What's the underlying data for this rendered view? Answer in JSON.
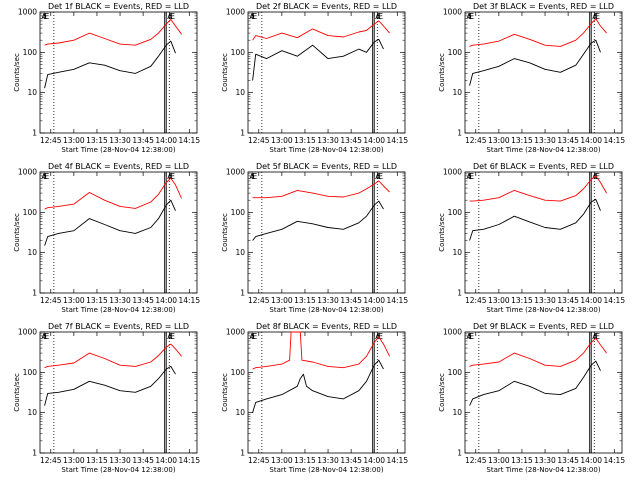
{
  "figure": {
    "ylabel": "Counts/sec",
    "xlabel": "Start Time (28-Nov-04 12:38:00)",
    "x_ticks": [
      "12:45",
      "13:00",
      "13:15",
      "13:30",
      "13:45",
      "14:00",
      "14:15"
    ],
    "y_ticks": [
      "1",
      "10",
      "100",
      "1000"
    ],
    "flags": [
      "A",
      "E",
      "E"
    ],
    "colors": {
      "events": "#000000",
      "lld": "#ff0000"
    }
  },
  "chart_data": [
    {
      "type": "line",
      "title": "Det 1f BLACK = Events, RED = LLD",
      "xlim": [
        "12:38",
        "14:20"
      ],
      "ylim": [
        1,
        1000
      ],
      "ylog": true,
      "dotted_x": [
        "12:47",
        "14:02"
      ],
      "solid_x": [
        "13:59",
        "14:00"
      ],
      "series": [
        {
          "name": "Events",
          "color": "#000000",
          "x": [
            "12:41",
            "12:43",
            "12:50",
            "13:00",
            "13:10",
            "13:20",
            "13:30",
            "13:40",
            "13:50",
            "13:55",
            "14:00",
            "14:03",
            "14:06"
          ],
          "y": [
            13,
            28,
            32,
            38,
            55,
            48,
            35,
            30,
            45,
            80,
            150,
            190,
            95
          ]
        },
        {
          "name": "LLD",
          "color": "#ff0000",
          "x": [
            "12:41",
            "12:43",
            "12:50",
            "13:00",
            "13:10",
            "13:20",
            "13:30",
            "13:40",
            "13:50",
            "13:55",
            "14:00",
            "14:03",
            "14:06",
            "14:10"
          ],
          "y": [
            150,
            160,
            170,
            200,
            300,
            220,
            160,
            150,
            210,
            300,
            500,
            650,
            450,
            280
          ]
        }
      ]
    },
    {
      "type": "line",
      "title": "Det 2f BLACK = Events, RED = LLD",
      "xlim": [
        "12:38",
        "14:20"
      ],
      "ylim": [
        1,
        1000
      ],
      "ylog": true,
      "dotted_x": [
        "12:47",
        "14:02"
      ],
      "solid_x": [
        "13:59",
        "14:00"
      ],
      "series": [
        {
          "name": "Events",
          "color": "#000000",
          "x": [
            "12:41",
            "12:43",
            "12:50",
            "13:00",
            "13:10",
            "13:20",
            "13:30",
            "13:40",
            "13:50",
            "13:55",
            "14:00",
            "14:03",
            "14:06"
          ],
          "y": [
            20,
            90,
            70,
            110,
            80,
            150,
            70,
            80,
            120,
            100,
            180,
            210,
            120
          ]
        },
        {
          "name": "LLD",
          "color": "#ff0000",
          "x": [
            "12:41",
            "12:43",
            "12:50",
            "13:00",
            "13:10",
            "13:20",
            "13:30",
            "13:40",
            "13:50",
            "13:55",
            "14:00",
            "14:03",
            "14:06",
            "14:10"
          ],
          "y": [
            200,
            260,
            220,
            300,
            230,
            380,
            260,
            240,
            320,
            350,
            500,
            600,
            450,
            300
          ]
        }
      ]
    },
    {
      "type": "line",
      "title": "Det 3f BLACK = Events, RED = LLD",
      "xlim": [
        "12:38",
        "14:20"
      ],
      "ylim": [
        1,
        1000
      ],
      "ylog": true,
      "dotted_x": [
        "12:47",
        "14:02"
      ],
      "solid_x": [
        "13:59",
        "14:00"
      ],
      "series": [
        {
          "name": "Events",
          "color": "#000000",
          "x": [
            "12:41",
            "12:43",
            "12:50",
            "13:00",
            "13:10",
            "13:20",
            "13:30",
            "13:40",
            "13:50",
            "13:55",
            "14:00",
            "14:03",
            "14:06"
          ],
          "y": [
            15,
            30,
            35,
            45,
            70,
            55,
            38,
            32,
            48,
            90,
            170,
            200,
            100
          ]
        },
        {
          "name": "LLD",
          "color": "#ff0000",
          "x": [
            "12:41",
            "12:43",
            "12:50",
            "13:00",
            "13:10",
            "13:20",
            "13:30",
            "13:40",
            "13:50",
            "13:55",
            "14:00",
            "14:03",
            "14:06",
            "14:10"
          ],
          "y": [
            140,
            150,
            160,
            190,
            280,
            210,
            150,
            140,
            200,
            300,
            520,
            680,
            450,
            300
          ]
        }
      ]
    },
    {
      "type": "line",
      "title": "Det 4f BLACK = Events, RED = LLD",
      "xlim": [
        "12:38",
        "14:20"
      ],
      "ylim": [
        1,
        1000
      ],
      "ylog": true,
      "dotted_x": [
        "12:47",
        "14:02"
      ],
      "solid_x": [
        "13:59",
        "14:00"
      ],
      "series": [
        {
          "name": "Events",
          "color": "#000000",
          "x": [
            "12:41",
            "12:43",
            "12:50",
            "13:00",
            "13:10",
            "13:20",
            "13:30",
            "13:40",
            "13:50",
            "13:55",
            "14:00",
            "14:03",
            "14:06"
          ],
          "y": [
            15,
            25,
            30,
            35,
            70,
            50,
            35,
            30,
            42,
            70,
            150,
            200,
            110
          ]
        },
        {
          "name": "LLD",
          "color": "#ff0000",
          "x": [
            "12:41",
            "12:43",
            "12:50",
            "13:00",
            "13:10",
            "13:20",
            "13:30",
            "13:40",
            "13:50",
            "13:55",
            "14:00",
            "14:03",
            "14:06",
            "14:10"
          ],
          "y": [
            120,
            130,
            140,
            160,
            310,
            200,
            140,
            125,
            180,
            280,
            550,
            700,
            480,
            220
          ]
        }
      ]
    },
    {
      "type": "line",
      "title": "Det 5f BLACK = Events, RED = LLD",
      "xlim": [
        "12:38",
        "14:20"
      ],
      "ylim": [
        1,
        1000
      ],
      "ylog": true,
      "dotted_x": [
        "12:47",
        "14:02"
      ],
      "solid_x": [
        "13:59",
        "14:00"
      ],
      "series": [
        {
          "name": "Events",
          "color": "#000000",
          "x": [
            "12:41",
            "12:43",
            "12:50",
            "13:00",
            "13:10",
            "13:20",
            "13:30",
            "13:40",
            "13:50",
            "13:55",
            "14:00",
            "14:03",
            "14:06"
          ],
          "y": [
            20,
            25,
            30,
            38,
            60,
            52,
            42,
            38,
            55,
            80,
            150,
            190,
            120
          ]
        },
        {
          "name": "LLD",
          "color": "#ff0000",
          "x": [
            "12:41",
            "12:43",
            "12:50",
            "13:00",
            "13:10",
            "13:20",
            "13:30",
            "13:40",
            "13:50",
            "13:55",
            "14:00",
            "14:03",
            "14:06",
            "14:10"
          ],
          "y": [
            230,
            230,
            230,
            250,
            350,
            300,
            250,
            240,
            300,
            380,
            500,
            600,
            450,
            320
          ]
        }
      ]
    },
    {
      "type": "line",
      "title": "Det 6f BLACK = Events, RED = LLD",
      "xlim": [
        "12:38",
        "14:20"
      ],
      "ylim": [
        1,
        1000
      ],
      "ylog": true,
      "dotted_x": [
        "12:47",
        "14:02"
      ],
      "solid_x": [
        "13:59",
        "14:00"
      ],
      "series": [
        {
          "name": "Events",
          "color": "#000000",
          "x": [
            "12:41",
            "12:43",
            "12:50",
            "13:00",
            "13:10",
            "13:20",
            "13:30",
            "13:40",
            "13:50",
            "13:55",
            "14:00",
            "14:03",
            "14:06"
          ],
          "y": [
            20,
            35,
            38,
            50,
            80,
            58,
            42,
            38,
            55,
            90,
            180,
            210,
            110
          ]
        },
        {
          "name": "LLD",
          "color": "#ff0000",
          "x": [
            "12:41",
            "12:43",
            "12:50",
            "13:00",
            "13:10",
            "13:20",
            "13:30",
            "13:40",
            "13:50",
            "13:55",
            "14:00",
            "14:03",
            "14:06",
            "14:10"
          ],
          "y": [
            190,
            190,
            200,
            230,
            350,
            260,
            200,
            190,
            260,
            380,
            650,
            800,
            550,
            300
          ]
        }
      ]
    },
    {
      "type": "line",
      "title": "Det 7f BLACK = Events, RED = LLD",
      "xlim": [
        "12:38",
        "14:20"
      ],
      "ylim": [
        1,
        1000
      ],
      "ylog": true,
      "dotted_x": [
        "12:47",
        "14:02"
      ],
      "solid_x": [
        "13:59",
        "14:00"
      ],
      "series": [
        {
          "name": "Events",
          "color": "#000000",
          "x": [
            "12:41",
            "12:43",
            "12:50",
            "13:00",
            "13:10",
            "13:20",
            "13:30",
            "13:40",
            "13:50",
            "13:55",
            "14:00",
            "14:03",
            "14:06"
          ],
          "y": [
            15,
            30,
            32,
            38,
            60,
            48,
            35,
            32,
            45,
            70,
            120,
            140,
            90
          ]
        },
        {
          "name": "LLD",
          "color": "#ff0000",
          "x": [
            "12:41",
            "12:43",
            "12:50",
            "13:00",
            "13:10",
            "13:20",
            "13:30",
            "13:40",
            "13:50",
            "13:55",
            "14:00",
            "14:03",
            "14:06",
            "14:10"
          ],
          "y": [
            130,
            140,
            150,
            170,
            300,
            220,
            150,
            140,
            180,
            260,
            420,
            500,
            380,
            250
          ]
        }
      ]
    },
    {
      "type": "line",
      "title": "Det 8f BLACK = Events, RED = LLD",
      "xlim": [
        "12:38",
        "14:20"
      ],
      "ylim": [
        1,
        1000
      ],
      "ylog": true,
      "dotted_x": [
        "12:47",
        "14:02"
      ],
      "solid_x": [
        "13:59",
        "14:00"
      ],
      "series": [
        {
          "name": "Events",
          "color": "#000000",
          "x": [
            "12:41",
            "12:43",
            "12:50",
            "13:00",
            "13:10",
            "13:12",
            "13:14",
            "13:16",
            "13:20",
            "13:30",
            "13:40",
            "13:50",
            "13:55",
            "14:00",
            "14:03",
            "14:06"
          ],
          "y": [
            10,
            18,
            22,
            28,
            45,
            70,
            90,
            45,
            35,
            25,
            22,
            35,
            60,
            150,
            200,
            120
          ]
        },
        {
          "name": "LLD",
          "color": "#ff0000",
          "x": [
            "12:41",
            "12:43",
            "12:50",
            "13:00",
            "13:05",
            "13:06",
            "13:12",
            "13:13",
            "13:20",
            "13:30",
            "13:40",
            "13:50",
            "13:55",
            "14:00",
            "14:03",
            "14:06",
            "14:10"
          ],
          "y": [
            120,
            130,
            140,
            160,
            200,
            1000,
            1000,
            200,
            180,
            140,
            130,
            160,
            250,
            550,
            750,
            500,
            250
          ]
        }
      ]
    },
    {
      "type": "line",
      "title": "Det 9f BLACK = Events, RED = LLD",
      "xlim": [
        "12:38",
        "14:20"
      ],
      "ylim": [
        1,
        1000
      ],
      "ylog": true,
      "dotted_x": [
        "12:47",
        "14:02"
      ],
      "solid_x": [
        "13:59",
        "14:00"
      ],
      "series": [
        {
          "name": "Events",
          "color": "#000000",
          "x": [
            "12:41",
            "12:43",
            "12:50",
            "13:00",
            "13:10",
            "13:20",
            "13:30",
            "13:40",
            "13:50",
            "13:55",
            "14:00",
            "14:03",
            "14:06"
          ],
          "y": [
            15,
            22,
            28,
            35,
            60,
            45,
            30,
            28,
            40,
            75,
            150,
            190,
            110
          ]
        },
        {
          "name": "LLD",
          "color": "#ff0000",
          "x": [
            "12:41",
            "12:43",
            "12:50",
            "13:00",
            "13:10",
            "13:20",
            "13:30",
            "13:40",
            "13:50",
            "13:55",
            "14:00",
            "14:03",
            "14:06",
            "14:10"
          ],
          "y": [
            140,
            150,
            160,
            180,
            300,
            220,
            150,
            140,
            200,
            300,
            550,
            700,
            480,
            300
          ]
        }
      ]
    }
  ]
}
